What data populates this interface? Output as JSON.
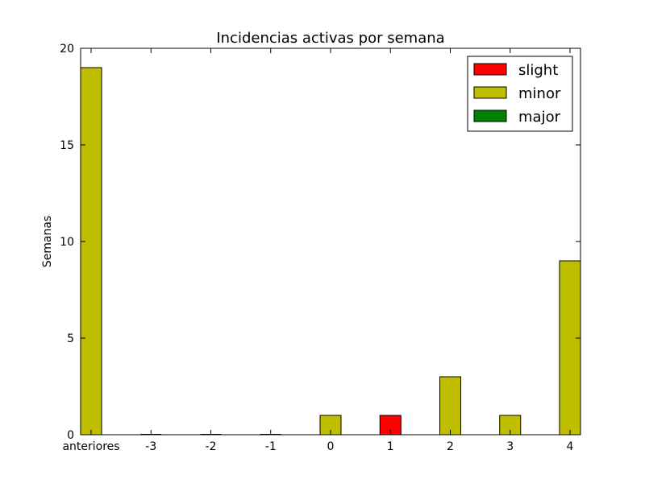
{
  "chart_data": {
    "type": "bar",
    "title": "Incidencias activas por semana",
    "xlabel": "",
    "ylabel": "Semanas",
    "categories": [
      "anteriores",
      "-3",
      "-2",
      "-1",
      "0",
      "1",
      "2",
      "3",
      "4"
    ],
    "yticks": [
      "0",
      "5",
      "10",
      "15",
      "20"
    ],
    "ylim": [
      0,
      20
    ],
    "grid": false,
    "legend_position": "top-right",
    "series": [
      {
        "name": "slight",
        "color": "#ff0000",
        "values": [
          0,
          0,
          0,
          0,
          0,
          1,
          0,
          0,
          0
        ]
      },
      {
        "name": "minor",
        "color": "#bfbf00",
        "values": [
          19,
          0,
          0,
          0,
          1,
          0,
          3,
          1,
          9
        ]
      },
      {
        "name": "major",
        "color": "#008000",
        "values": [
          0,
          0,
          0,
          0,
          0,
          0,
          0,
          0,
          0
        ]
      }
    ]
  }
}
